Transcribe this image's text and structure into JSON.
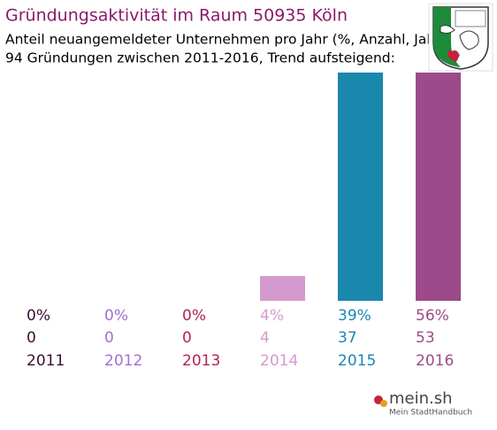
{
  "chart_data": {
    "type": "bar",
    "title": "Gründungsaktivität im Raum 50935 Köln",
    "subtitle": [
      "Anteil neuangemeldeter Unternehmen pro Jahr (%, Anzahl, Jahr)",
      "94 Gründungen zwischen 2011-2016, Trend aufsteigend:"
    ],
    "categories": [
      "2011",
      "2012",
      "2013",
      "2014",
      "2015",
      "2016"
    ],
    "values": [
      0,
      0,
      0,
      4,
      39,
      56
    ],
    "value_labels": [
      "0%",
      "0%",
      "0%",
      "4%",
      "39%",
      "56%"
    ],
    "counts": [
      0,
      0,
      0,
      4,
      37,
      53
    ],
    "colors": [
      "#3e0d33",
      "#a06fd6",
      "#b5234f",
      "#d49ad0",
      "#1a87ad",
      "#9c4a8a"
    ],
    "title_color": "#8b1a6b",
    "brand": {
      "name": "mein.sh",
      "tagline": "Mein StadtHandbuch"
    }
  }
}
